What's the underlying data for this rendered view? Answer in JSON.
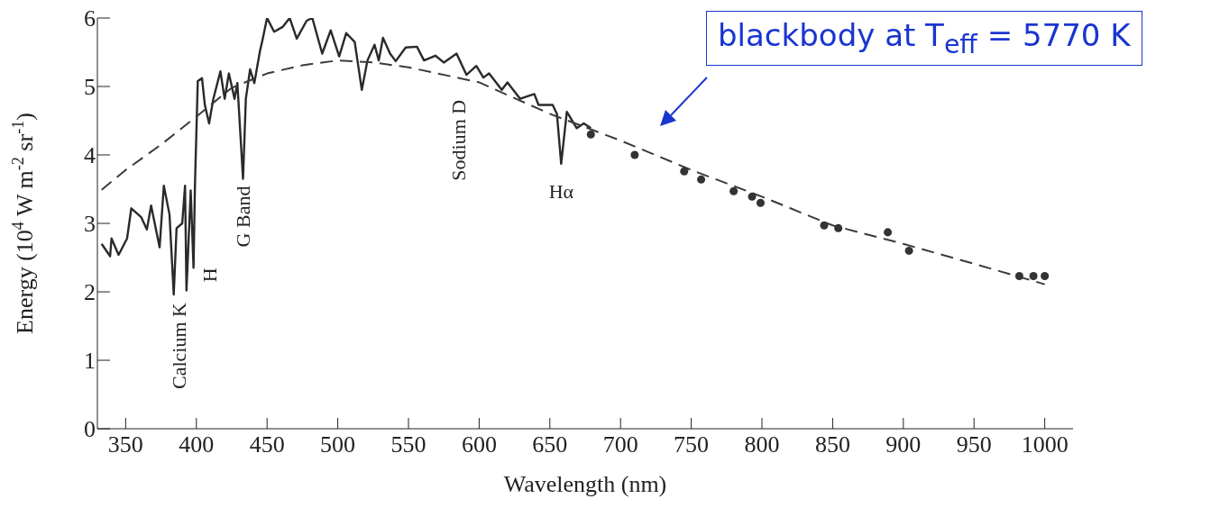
{
  "chart_data": {
    "type": "line",
    "xlabel": "Wavelength (nm)",
    "ylabel": "Energy (10$^{4}$ W m$^{-2}$ sr$^{-1}$)",
    "xlim": [
      330,
      1020
    ],
    "ylim": [
      0,
      6
    ],
    "xticks": [
      350,
      400,
      450,
      500,
      550,
      600,
      650,
      700,
      750,
      800,
      850,
      900,
      950,
      1000
    ],
    "yticks": [
      0,
      1,
      2,
      3,
      4,
      5,
      6
    ],
    "grid": false,
    "legend": false,
    "series": [
      {
        "color": "#2a2a2a",
        "line_style": "solid",
        "marker": "none",
        "x": [
          333,
          339,
          340,
          345,
          351,
          354,
          361,
          365,
          368,
          374,
          377,
          381,
          384,
          386,
          390,
          392,
          393,
          396,
          398,
          399,
          401,
          404,
          406,
          409,
          412,
          417,
          420,
          423,
          427,
          429,
          433,
          435,
          438,
          441,
          445,
          447,
          450,
          455,
          461,
          466,
          471,
          478,
          482,
          489,
          495,
          501,
          506,
          512,
          517,
          521,
          526,
          529,
          532,
          537,
          541,
          548,
          556,
          561,
          569,
          575,
          584,
          591,
          598,
          603,
          607,
          616,
          620,
          629,
          639,
          642,
          652,
          655,
          658,
          662,
          669,
          674,
          679
        ],
        "values": [
          2.7,
          2.52,
          2.78,
          2.54,
          2.78,
          3.22,
          3.09,
          2.91,
          3.26,
          2.65,
          3.55,
          3.13,
          1.96,
          2.93,
          3.0,
          3.55,
          2.02,
          3.48,
          2.35,
          3.56,
          5.08,
          5.12,
          4.73,
          4.46,
          4.82,
          5.22,
          4.82,
          5.19,
          4.82,
          5.05,
          3.65,
          4.82,
          5.25,
          5.05,
          5.52,
          5.7,
          6.0,
          5.8,
          5.87,
          6.0,
          5.7,
          5.96,
          6.0,
          5.48,
          5.82,
          5.44,
          5.78,
          5.65,
          4.95,
          5.38,
          5.61,
          5.38,
          5.71,
          5.48,
          5.37,
          5.57,
          5.58,
          5.38,
          5.45,
          5.35,
          5.48,
          5.17,
          5.3,
          5.13,
          5.19,
          4.95,
          5.06,
          4.82,
          4.89,
          4.73,
          4.73,
          4.6,
          3.87,
          4.63,
          4.39,
          4.46,
          4.39
        ]
      },
      {
        "type": "line",
        "color": "#3a3a3a",
        "line_style": "dashed",
        "marker": "none",
        "x": [
          333,
          350,
          375,
          400,
          425,
          450,
          475,
          500,
          525,
          550,
          600,
          650,
          700,
          750,
          800,
          850,
          900,
          950,
          1000
        ],
        "values": [
          3.49,
          3.78,
          4.15,
          4.56,
          4.98,
          5.19,
          5.31,
          5.38,
          5.35,
          5.28,
          5.06,
          4.6,
          4.21,
          3.78,
          3.39,
          2.97,
          2.7,
          2.41,
          2.11
        ]
      },
      {
        "type": "scatter",
        "color": "#333333",
        "marker": "circle",
        "x": [
          679,
          710,
          745,
          757,
          780,
          793,
          799,
          844,
          854,
          889,
          904,
          982,
          992,
          1000
        ],
        "values": [
          4.3,
          4.0,
          3.76,
          3.64,
          3.47,
          3.39,
          3.3,
          2.97,
          2.93,
          2.87,
          2.6,
          2.23,
          2.23,
          2.23
        ]
      }
    ],
    "annotations": [
      {
        "text": "Calcium K",
        "x": 393,
        "y": 2.0
      },
      {
        "text": "H",
        "x": 398,
        "y": 2.35
      },
      {
        "text": "G Band",
        "x": 433,
        "y": 3.65
      },
      {
        "text": "Sodium D",
        "x": 589,
        "y": 5.2
      },
      {
        "text": "Hα",
        "x": 658,
        "y": 3.87
      },
      "blackbody at T$_{eff}$ = 5770 K"
    ]
  }
}
